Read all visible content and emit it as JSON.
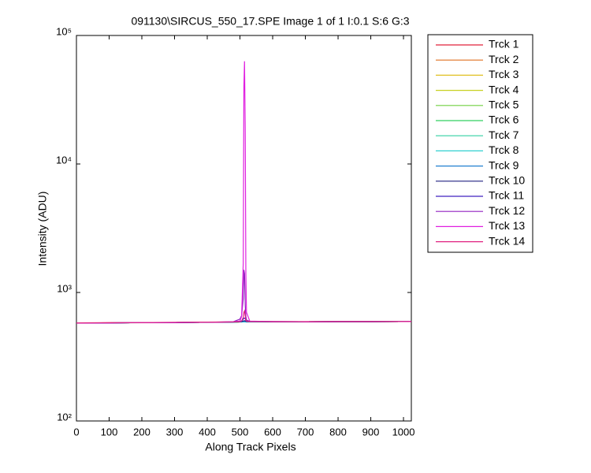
{
  "chart_data": {
    "type": "line",
    "title": "091130\\SIRCUS_550_17.SPE  Image 1 of 1  I:0.1  S:6  G:3",
    "x_label": "Along Track Pixels",
    "y_label": "Intensity (ADU)",
    "y_scale": "log",
    "xlim": [
      0,
      1024
    ],
    "ylim": [
      100,
      100000
    ],
    "xticks": [
      0,
      100,
      200,
      300,
      400,
      500,
      600,
      700,
      800,
      900,
      1000
    ],
    "yticks": [
      {
        "value": 100,
        "label": "10²"
      },
      {
        "value": 1000,
        "label": "10³"
      },
      {
        "value": 10000,
        "label": "10⁴"
      },
      {
        "value": 100000,
        "label": "10⁵"
      }
    ],
    "legend_position": "outside-right",
    "x": [
      0,
      100,
      200,
      300,
      400,
      480,
      500,
      505,
      510,
      512,
      514,
      516,
      518,
      520,
      530,
      600,
      700,
      800,
      900,
      1024
    ],
    "series": [
      {
        "name": "Trck 1",
        "color": "#e0203a",
        "values": [
          580,
          581,
          582,
          584,
          586,
          588,
          590,
          591,
          592,
          591,
          592,
          591,
          590,
          590,
          592,
          592,
          592,
          593,
          593,
          594
        ]
      },
      {
        "name": "Trck 2",
        "color": "#e07020",
        "values": [
          579,
          580,
          583,
          584,
          586,
          588,
          590,
          590,
          591,
          590,
          591,
          590,
          590,
          590,
          592,
          592,
          592,
          593,
          593,
          594
        ]
      },
      {
        "name": "Trck 3",
        "color": "#e0c020",
        "values": [
          578,
          580,
          582,
          584,
          586,
          588,
          590,
          590,
          590,
          590,
          590,
          590,
          590,
          590,
          592,
          592,
          592,
          593,
          593,
          594
        ]
      },
      {
        "name": "Trck 4",
        "color": "#c8d020",
        "values": [
          578,
          580,
          582,
          583,
          586,
          588,
          590,
          590,
          590,
          590,
          590,
          590,
          590,
          590,
          592,
          592,
          592,
          593,
          593,
          594
        ]
      },
      {
        "name": "Trck 5",
        "color": "#70d040",
        "values": [
          577,
          580,
          582,
          584,
          586,
          588,
          590,
          590,
          590,
          590,
          590,
          590,
          590,
          590,
          592,
          592,
          592,
          593,
          593,
          594
        ]
      },
      {
        "name": "Trck 6",
        "color": "#30d060",
        "values": [
          578,
          579,
          582,
          584,
          586,
          588,
          590,
          590,
          590,
          590,
          590,
          590,
          590,
          590,
          592,
          592,
          592,
          593,
          593,
          594
        ]
      },
      {
        "name": "Trck 7",
        "color": "#30d0a0",
        "values": [
          578,
          580,
          581,
          584,
          586,
          588,
          590,
          590,
          590,
          590,
          590,
          590,
          590,
          590,
          592,
          592,
          592,
          593,
          593,
          594
        ]
      },
      {
        "name": "Trck 8",
        "color": "#30d0d0",
        "values": [
          578,
          580,
          582,
          584,
          585,
          588,
          590,
          590,
          590,
          590,
          590,
          590,
          590,
          590,
          592,
          592,
          592,
          593,
          593,
          594
        ]
      },
      {
        "name": "Trck 9",
        "color": "#2080d0",
        "values": [
          577,
          580,
          582,
          584,
          586,
          588,
          591,
          592,
          595,
          596,
          596,
          595,
          593,
          591,
          592,
          592,
          592,
          593,
          593,
          594
        ]
      },
      {
        "name": "Trck 10",
        "color": "#202080",
        "values": [
          578,
          580,
          582,
          584,
          586,
          589,
          592,
          594,
          600,
          602,
          603,
          601,
          598,
          594,
          593,
          592,
          592,
          593,
          593,
          594
        ]
      },
      {
        "name": "Trck 11",
        "color": "#4020c0",
        "values": [
          578,
          580,
          582,
          584,
          586,
          590,
          596,
          600,
          620,
          630,
          632,
          626,
          612,
          600,
          595,
          593,
          592,
          593,
          593,
          594
        ]
      },
      {
        "name": "Trck 12",
        "color": "#9020c0",
        "values": [
          578,
          580,
          582,
          584,
          586,
          592,
          620,
          660,
          900,
          1500,
          1400,
          800,
          650,
          610,
          596,
          593,
          592,
          593,
          593,
          594
        ]
      },
      {
        "name": "Trck 13",
        "color": "#e020e0",
        "values": [
          578,
          580,
          582,
          584,
          586,
          590,
          600,
          650,
          1700,
          40000,
          63000,
          19000,
          1400,
          700,
          598,
          593,
          592,
          593,
          593,
          594
        ]
      },
      {
        "name": "Trck 14",
        "color": "#e02080",
        "values": [
          580,
          581,
          583,
          586,
          588,
          590,
          594,
          600,
          640,
          700,
          720,
          660,
          610,
          598,
          594,
          593,
          593,
          594,
          594,
          595
        ]
      }
    ]
  }
}
